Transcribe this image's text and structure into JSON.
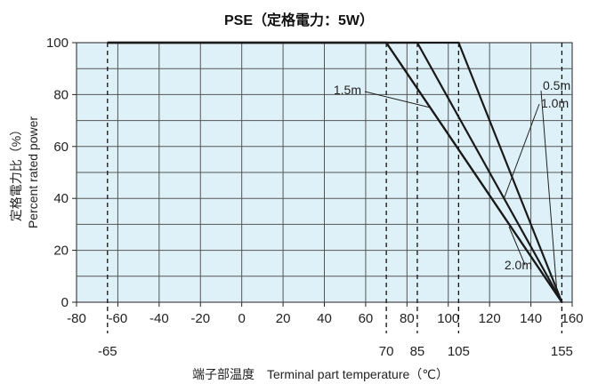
{
  "chart_data": {
    "type": "line",
    "title": "PSE（定格電力：5W）",
    "xlabel": "端子部温度　Terminal part temperature（℃）",
    "ylabel_jp": "定格電力比（%）",
    "ylabel_en": "Percent rated power",
    "xlim": [
      -80,
      160
    ],
    "ylim": [
      0,
      100
    ],
    "x_ticks": [
      "-80",
      "-60",
      "-40",
      "-20",
      "0",
      "20",
      "40",
      "60",
      "80",
      "100",
      "120",
      "140",
      "160"
    ],
    "y_ticks": [
      "0",
      "20",
      "40",
      "60",
      "80",
      "100"
    ],
    "grid": true,
    "series": [
      {
        "name": "0.5m",
        "points": [
          [
            -65,
            100
          ],
          [
            105,
            100
          ],
          [
            155,
            0
          ]
        ]
      },
      {
        "name": "1.0m",
        "points": [
          [
            -65,
            100
          ],
          [
            85,
            100
          ],
          [
            155,
            0
          ]
        ]
      },
      {
        "name": "1.5m",
        "points": [
          [
            -65,
            100
          ],
          [
            70,
            100
          ],
          [
            155,
            0
          ]
        ]
      },
      {
        "name": "2.0m",
        "points": [
          [
            -65,
            100
          ],
          [
            70,
            100
          ],
          [
            155,
            0
          ]
        ]
      }
    ],
    "reference_lines": [
      {
        "x": -65,
        "label": "-65"
      },
      {
        "x": 70,
        "label": "70"
      },
      {
        "x": 85,
        "label": "85"
      },
      {
        "x": 105,
        "label": "105"
      },
      {
        "x": 155,
        "label": "155"
      }
    ],
    "colors": {
      "plot_background": "#dff1f8",
      "grid": "#555555",
      "series": "#1a1a1a"
    }
  }
}
